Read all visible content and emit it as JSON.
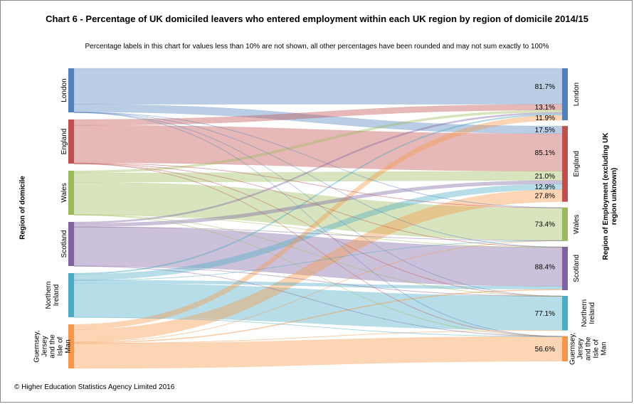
{
  "chart_data": {
    "type": "sankey",
    "title": "Chart 6  - Percentage of UK domiciled leavers who entered employment within each UK region by region of domicile 2014/15",
    "subtitle": "Percentage labels in this chart for values less than 10% are not shown, all other percentages have been rounded and may not sum exactly to 100%",
    "left_axis_label": "Region of domicile",
    "right_axis_label": "Region of Employment (excluding UK region unknown)",
    "copyright": "© Higher Education Statistics Agency Limited 2016",
    "left_nodes": [
      {
        "id": "london",
        "label": "London",
        "color": "#4f81bd"
      },
      {
        "id": "england",
        "label": "England",
        "color": "#c0504d"
      },
      {
        "id": "wales",
        "label": "Wales",
        "color": "#9bbb59"
      },
      {
        "id": "scotland",
        "label": "Scotland",
        "color": "#8064a2"
      },
      {
        "id": "ni",
        "label": "Northern Ireland",
        "color": "#4bacc6"
      },
      {
        "id": "gjim",
        "label": "Guernsey, Jersey and the Isle of Man",
        "color": "#f79646"
      }
    ],
    "right_nodes": [
      {
        "id": "london",
        "label": "London",
        "color": "#4f81bd"
      },
      {
        "id": "england",
        "label": "England",
        "color": "#c0504d"
      },
      {
        "id": "wales",
        "label": "Wales",
        "color": "#9bbb59"
      },
      {
        "id": "scotland",
        "label": "Scotland",
        "color": "#8064a2"
      },
      {
        "id": "ni",
        "label": "Northern Ireland",
        "color": "#4bacc6"
      },
      {
        "id": "gjim",
        "label": "Guernsey, Jersey and the Isle of Man",
        "color": "#f79646"
      }
    ],
    "flows": [
      {
        "from": "london",
        "to": "london",
        "value": 81.7,
        "label": "81.7%"
      },
      {
        "from": "london",
        "to": "england",
        "value": 17.5,
        "label": "17.5%"
      },
      {
        "from": "london",
        "to": "wales",
        "value": 0.3
      },
      {
        "from": "london",
        "to": "scotland",
        "value": 0.3
      },
      {
        "from": "london",
        "to": "ni",
        "value": 0.1
      },
      {
        "from": "london",
        "to": "gjim",
        "value": 0.1
      },
      {
        "from": "england",
        "to": "london",
        "value": 13.1,
        "label": "13.1%"
      },
      {
        "from": "england",
        "to": "england",
        "value": 85.1,
        "label": "85.1%"
      },
      {
        "from": "england",
        "to": "wales",
        "value": 1.0
      },
      {
        "from": "england",
        "to": "scotland",
        "value": 0.6
      },
      {
        "from": "england",
        "to": "ni",
        "value": 0.1
      },
      {
        "from": "england",
        "to": "gjim",
        "value": 0.1
      },
      {
        "from": "wales",
        "to": "london",
        "value": 5.0
      },
      {
        "from": "wales",
        "to": "england",
        "value": 21.0,
        "label": "21.0%"
      },
      {
        "from": "wales",
        "to": "wales",
        "value": 73.4,
        "label": "73.4%"
      },
      {
        "from": "wales",
        "to": "scotland",
        "value": 0.4
      },
      {
        "from": "wales",
        "to": "ni",
        "value": 0.1
      },
      {
        "from": "wales",
        "to": "gjim",
        "value": 0.1
      },
      {
        "from": "scotland",
        "to": "london",
        "value": 3.5
      },
      {
        "from": "scotland",
        "to": "england",
        "value": 7.5
      },
      {
        "from": "scotland",
        "to": "wales",
        "value": 0.2
      },
      {
        "from": "scotland",
        "to": "scotland",
        "value": 88.4,
        "label": "88.4%"
      },
      {
        "from": "scotland",
        "to": "ni",
        "value": 0.3
      },
      {
        "from": "scotland",
        "to": "gjim",
        "value": 0.1
      },
      {
        "from": "ni",
        "to": "london",
        "value": 2.8
      },
      {
        "from": "ni",
        "to": "england",
        "value": 12.9,
        "label": "12.9%"
      },
      {
        "from": "ni",
        "to": "wales",
        "value": 0.3
      },
      {
        "from": "ni",
        "to": "scotland",
        "value": 6.8
      },
      {
        "from": "ni",
        "to": "ni",
        "value": 77.1,
        "label": "77.1%"
      },
      {
        "from": "ni",
        "to": "gjim",
        "value": 0.1
      },
      {
        "from": "gjim",
        "to": "london",
        "value": 11.9,
        "label": "11.9%"
      },
      {
        "from": "gjim",
        "to": "england",
        "value": 27.8,
        "label": "27.8%"
      },
      {
        "from": "gjim",
        "to": "wales",
        "value": 1.0
      },
      {
        "from": "gjim",
        "to": "scotland",
        "value": 2.0
      },
      {
        "from": "gjim",
        "to": "ni",
        "value": 0.7
      },
      {
        "from": "gjim",
        "to": "gjim",
        "value": 56.6,
        "label": "56.6%"
      }
    ]
  }
}
